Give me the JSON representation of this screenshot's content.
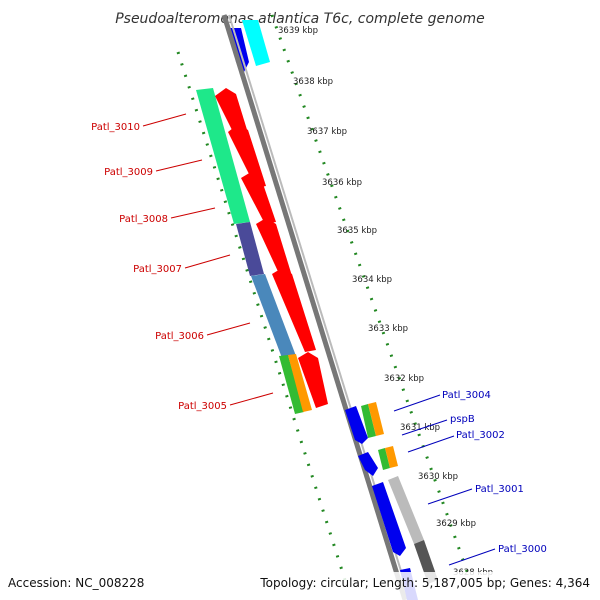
{
  "title": "Pseudoalteromonas atlantica T6c, complete genome",
  "footer": {
    "accession": "Accession: NC_008228",
    "summary": "Topology: circular; Length: 5,187,005 bp; Genes: 4,364"
  },
  "kbp_labels": [
    "3639 kbp",
    "3638 kbp",
    "3637 kbp",
    "3636 kbp",
    "3635 kbp",
    "3634 kbp",
    "3633 kbp",
    "3632 kbp",
    "3631 kbp",
    "3630 kbp",
    "3629 kbp",
    "3628 kbp"
  ],
  "left_genes": [
    "Patl_3010",
    "Patl_3009",
    "Patl_3008",
    "Patl_3007",
    "Patl_3006",
    "Patl_3005"
  ],
  "right_genes": [
    "Patl_3004",
    "pspB",
    "Patl_3002",
    "Patl_3001",
    "Patl_3000"
  ],
  "colors": {
    "backbone": "#777777",
    "tick_green": "#228822",
    "red_gene": "#ff0000",
    "blue_gene": "#0000ee",
    "cyan_gene": "#00ffff",
    "seagreen_band": "#1ee88a",
    "slate_band": "#4a4a99",
    "steel_band": "#4a88bb",
    "green_band": "#33bb33",
    "orange_band": "#ff9900",
    "gray_band": "#bbbbbb",
    "dark_gray_band": "#555555"
  }
}
